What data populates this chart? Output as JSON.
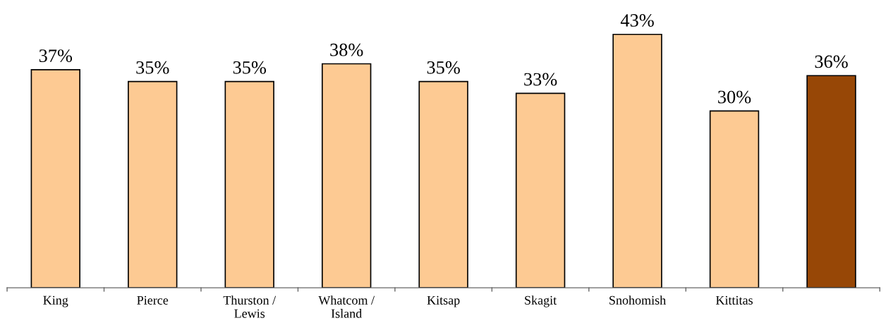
{
  "chart_data": {
    "type": "bar",
    "categories": [
      "King",
      "Pierce",
      "Thurston /\nLewis",
      "Whatcom /\nIsland",
      "Kitsap",
      "Skagit",
      "Snohomish",
      "Kittitas",
      null
    ],
    "values": [
      37,
      35,
      35,
      38,
      35,
      33,
      43,
      30,
      36
    ],
    "colors": [
      "#fdca93",
      "#fdca93",
      "#fdca93",
      "#fdca93",
      "#fdca93",
      "#fdca93",
      "#fdca93",
      "#fdca93",
      "#974706"
    ],
    "value_labels": [
      "37%",
      "35%",
      "35%",
      "38%",
      "35%",
      "33%",
      "43%",
      "30%",
      "36%"
    ],
    "tick_labels": "x",
    "grid": false,
    "legend": false
  }
}
